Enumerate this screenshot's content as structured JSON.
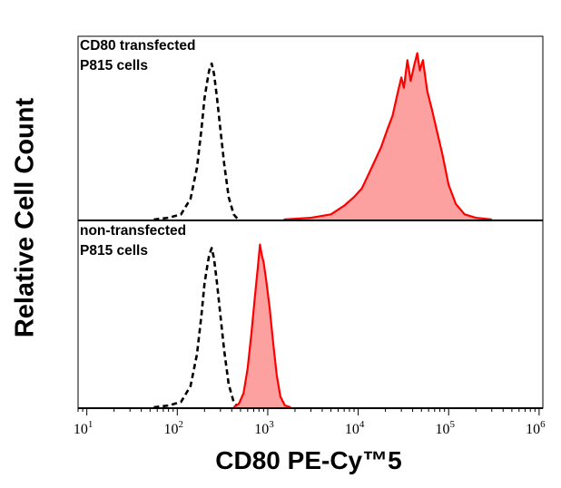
{
  "chart_data": {
    "type": "histogram-overlay",
    "y_axis_title": "Relative Cell Count",
    "x_axis_title": "CD80 PE-Cy™5",
    "x_scale": "log",
    "x_range": [
      8,
      1100000
    ],
    "x_ticks": [
      {
        "base": "10",
        "exp": "1"
      },
      {
        "base": "10",
        "exp": "2"
      },
      {
        "base": "10",
        "exp": "3"
      },
      {
        "base": "10",
        "exp": "4"
      },
      {
        "base": "10",
        "exp": "5"
      },
      {
        "base": "10",
        "exp": "6"
      }
    ],
    "panels": [
      {
        "label_lines": [
          "CD80 transfected",
          "P815 cells"
        ],
        "series": [
          {
            "style": "dashed",
            "color": "#000000",
            "points": [
              [
                55,
                0
              ],
              [
                80,
                0.01
              ],
              [
                110,
                0.03
              ],
              [
                140,
                0.12
              ],
              [
                165,
                0.3
              ],
              [
                185,
                0.52
              ],
              [
                200,
                0.7
              ],
              [
                215,
                0.8
              ],
              [
                225,
                0.86
              ],
              [
                240,
                0.9
              ],
              [
                255,
                0.84
              ],
              [
                275,
                0.7
              ],
              [
                300,
                0.52
              ],
              [
                330,
                0.32
              ],
              [
                370,
                0.13
              ],
              [
                420,
                0.03
              ],
              [
                470,
                0
              ]
            ]
          },
          {
            "style": "filled",
            "color": "#ff0000",
            "fill": "#fca0a0",
            "points": [
              [
                1500,
                0
              ],
              [
                3000,
                0.01
              ],
              [
                5000,
                0.03
              ],
              [
                7000,
                0.08
              ],
              [
                9000,
                0.13
              ],
              [
                11000,
                0.18
              ],
              [
                13000,
                0.26
              ],
              [
                15000,
                0.33
              ],
              [
                18000,
                0.42
              ],
              [
                21000,
                0.52
              ],
              [
                24000,
                0.6
              ],
              [
                27000,
                0.72
              ],
              [
                30000,
                0.82
              ],
              [
                32000,
                0.76
              ],
              [
                35000,
                0.92
              ],
              [
                38000,
                0.8
              ],
              [
                42000,
                0.9
              ],
              [
                45000,
                0.96
              ],
              [
                48000,
                0.86
              ],
              [
                52000,
                0.92
              ],
              [
                58000,
                0.74
              ],
              [
                65000,
                0.64
              ],
              [
                75000,
                0.5
              ],
              [
                85000,
                0.38
              ],
              [
                100000,
                0.2
              ],
              [
                120000,
                0.09
              ],
              [
                150000,
                0.03
              ],
              [
                200000,
                0.01
              ],
              [
                300000,
                0
              ]
            ]
          }
        ]
      },
      {
        "label_lines": [
          "non-transfected",
          "P815 cells"
        ],
        "series": [
          {
            "style": "dashed",
            "color": "#000000",
            "points": [
              [
                55,
                0
              ],
              [
                80,
                0.01
              ],
              [
                110,
                0.03
              ],
              [
                140,
                0.12
              ],
              [
                165,
                0.3
              ],
              [
                185,
                0.52
              ],
              [
                200,
                0.7
              ],
              [
                215,
                0.8
              ],
              [
                225,
                0.86
              ],
              [
                240,
                0.9
              ],
              [
                255,
                0.84
              ],
              [
                275,
                0.7
              ],
              [
                300,
                0.52
              ],
              [
                330,
                0.32
              ],
              [
                370,
                0.13
              ],
              [
                420,
                0.03
              ],
              [
                470,
                0
              ]
            ]
          },
          {
            "style": "filled",
            "color": "#ff0000",
            "fill": "#fca0a0",
            "points": [
              [
                420,
                0
              ],
              [
                480,
                0.02
              ],
              [
                540,
                0.08
              ],
              [
                600,
                0.22
              ],
              [
                660,
                0.42
              ],
              [
                720,
                0.62
              ],
              [
                780,
                0.8
              ],
              [
                820,
                0.92
              ],
              [
                860,
                0.86
              ],
              [
                900,
                0.82
              ],
              [
                960,
                0.72
              ],
              [
                1050,
                0.56
              ],
              [
                1150,
                0.36
              ],
              [
                1260,
                0.18
              ],
              [
                1380,
                0.06
              ],
              [
                1550,
                0.01
              ],
              [
                1800,
                0
              ]
            ]
          }
        ]
      }
    ]
  }
}
